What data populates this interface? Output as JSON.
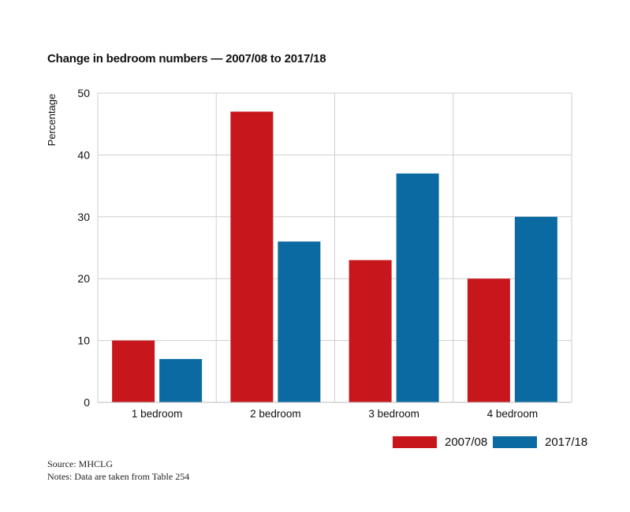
{
  "chart_data": {
    "type": "bar",
    "title": "Change in bedroom numbers — 2007/08 to 2017/18",
    "ylabel": "Percentage",
    "xlabel": "",
    "ylim": [
      0,
      50
    ],
    "yticks": [
      "0",
      "10",
      "20",
      "30",
      "40",
      "50"
    ],
    "categories": [
      "1 bedroom",
      "2 bedroom",
      "3 bedroom",
      "4 bedroom"
    ],
    "series": [
      {
        "name": "2007/08",
        "color": "#c8161d",
        "values": [
          10,
          47,
          23,
          20
        ]
      },
      {
        "name": "2017/18",
        "color": "#0a6aa1",
        "values": [
          7,
          26,
          37,
          30
        ]
      }
    ],
    "grid": true,
    "legend_position": "bottom-right"
  },
  "footer": {
    "source": "Source: MHCLG",
    "notes": "Notes: Data are taken from Table 254"
  }
}
